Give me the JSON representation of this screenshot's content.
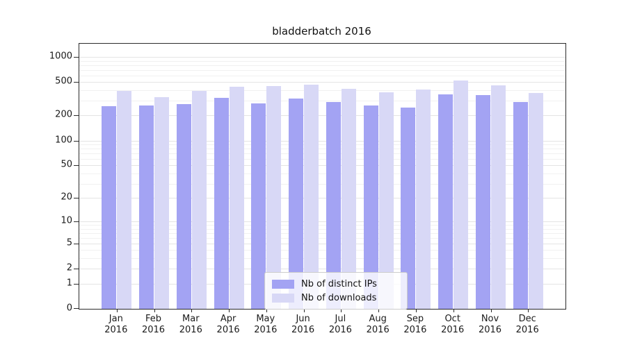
{
  "chart_data": {
    "type": "bar",
    "title": "bladderbatch 2016",
    "categories": [
      "Jan 2016",
      "Feb 2016",
      "Mar 2016",
      "Apr 2016",
      "May 2016",
      "Jun 2016",
      "Jul 2016",
      "Aug 2016",
      "Sep 2016",
      "Oct 2016",
      "Nov 2016",
      "Dec 2016"
    ],
    "series": [
      {
        "name": "Nb of distinct IPs",
        "color": "#a3a3f3",
        "values": [
          260,
          265,
          275,
          325,
          280,
          320,
          290,
          263,
          250,
          357,
          350,
          287
        ]
      },
      {
        "name": "Nb of downloads",
        "color": "#d8d8f6",
        "values": [
          393,
          334,
          395,
          437,
          450,
          466,
          418,
          380,
          410,
          523,
          460,
          368
        ]
      }
    ],
    "xlabel": "",
    "ylabel": "",
    "yscale": "log1p",
    "ylim": [
      0,
      1000
    ],
    "yticks": [
      0,
      1,
      2,
      5,
      10,
      20,
      50,
      100,
      200,
      500,
      1000
    ],
    "minor_gridlines": [
      3,
      4,
      6,
      7,
      8,
      9,
      30,
      40,
      60,
      70,
      80,
      90,
      300,
      400,
      600,
      700,
      800,
      900
    ],
    "grid": "horizontal",
    "legend_position": "lower center",
    "spine_color": "#2a2a2a",
    "major_grid_color": "#e4e4e4",
    "minor_grid_color": "#f1f1f1"
  }
}
